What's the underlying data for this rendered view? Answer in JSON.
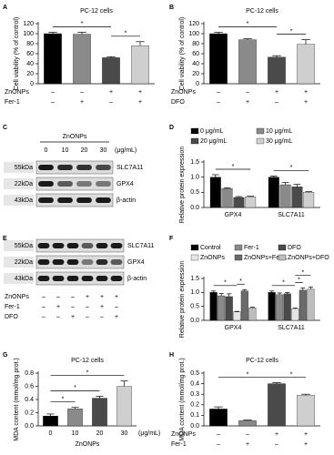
{
  "chart_data": [
    {
      "panel": "A",
      "type": "bar",
      "title": "PC-12 cells",
      "ylabel": "Cell viability (% of control)",
      "values": [
        100,
        99,
        52,
        76
      ],
      "errors": [
        3,
        4,
        2,
        8
      ],
      "colors": [
        "#000000",
        "#8a8a8a",
        "#4a4a4a",
        "#cfcfcf"
      ],
      "ylim": [
        0,
        120
      ],
      "yticks": [
        0,
        20,
        40,
        60,
        80,
        100,
        120
      ],
      "treatments": [
        {
          "label": "ZnONPs",
          "signs": [
            "–",
            "–",
            "+",
            "+"
          ]
        },
        {
          "label": "Fer-1",
          "signs": [
            "–",
            "+",
            "–",
            "+"
          ]
        }
      ],
      "significance": [
        {
          "text": "*",
          "between": [
            0,
            2
          ]
        },
        {
          "text": "*",
          "between": [
            2,
            3
          ]
        }
      ]
    },
    {
      "panel": "B",
      "type": "bar",
      "title": "PC-12 cells",
      "ylabel": "Cell viability (% of control)",
      "values": [
        100,
        88,
        53,
        79
      ],
      "errors": [
        3,
        2,
        3,
        9
      ],
      "colors": [
        "#000000",
        "#8a8a8a",
        "#4a4a4a",
        "#cfcfcf"
      ],
      "ylim": [
        0,
        120
      ],
      "yticks": [
        0,
        20,
        40,
        60,
        80,
        100,
        120
      ],
      "treatments": [
        {
          "label": "ZnONPs",
          "signs": [
            "–",
            "–",
            "+",
            "+"
          ]
        },
        {
          "label": "DFO",
          "signs": [
            "–",
            "+",
            "–",
            "+"
          ]
        }
      ],
      "significance": [
        {
          "text": "*",
          "between": [
            0,
            2
          ]
        },
        {
          "text": "*",
          "between": [
            2,
            3
          ]
        }
      ]
    },
    {
      "panel": "D",
      "type": "grouped-bar",
      "ylabel": "Relative protein expression",
      "categories": [
        "GPX4",
        "SLC7A11"
      ],
      "series": [
        {
          "name": "0 μg/mL",
          "color": "#000000",
          "values": [
            1.0,
            1.0
          ],
          "errors": [
            0.08,
            0.04
          ]
        },
        {
          "name": "10 μg/mL",
          "color": "#8a8a8a",
          "values": [
            0.62,
            0.75
          ],
          "errors": [
            0.03,
            0.07
          ]
        },
        {
          "name": "20 μg/mL",
          "color": "#4a4a4a",
          "values": [
            0.33,
            0.68
          ],
          "errors": [
            0.03,
            0.08
          ]
        },
        {
          "name": "30 μg/mL",
          "color": "#cfcfcf",
          "values": [
            0.35,
            0.5
          ],
          "errors": [
            0.02,
            0.02
          ]
        }
      ],
      "ylim": [
        0,
        1.5
      ],
      "yticks": [
        {
          "value": 0,
          "label": "0.0"
        },
        {
          "value": 0.5,
          "label": "0.5"
        },
        {
          "value": 1,
          "label": "1.0"
        },
        {
          "value": 1.5,
          "label": "1.5"
        }
      ],
      "legend": "top",
      "significance": [
        {
          "text": "*",
          "category": 0,
          "between": [
            0,
            3
          ]
        },
        {
          "text": "*",
          "category": 1,
          "between": [
            0,
            3
          ]
        }
      ]
    },
    {
      "panel": "F",
      "type": "grouped-bar",
      "ylabel": "Relative protein expression",
      "categories": [
        "GPX4",
        "SLC7A11"
      ],
      "series": [
        {
          "name": "Control",
          "color": "#000000",
          "values": [
            1.0,
            1.0
          ],
          "errors": [
            0.05,
            0.05
          ]
        },
        {
          "name": "Fer-1",
          "color": "#8a8a8a",
          "values": [
            0.88,
            0.92
          ],
          "errors": [
            0.08,
            0.06
          ]
        },
        {
          "name": "DFO",
          "color": "#4a4a4a",
          "values": [
            0.85,
            0.95
          ],
          "errors": [
            0.1,
            0.05
          ]
        },
        {
          "name": "ZnONPs",
          "color": "#e6e6e6",
          "values": [
            0.3,
            0.42
          ],
          "errors": [
            0.02,
            0.02
          ]
        },
        {
          "name": "ZnONPs+Fer-1",
          "color": "#6a6a6a",
          "values": [
            1.05,
            1.08
          ],
          "errors": [
            0.05,
            0.08
          ]
        },
        {
          "name": "ZnONPs+DFO",
          "color": "#bdbdbd",
          "values": [
            0.45,
            1.12
          ],
          "errors": [
            0.02,
            0.07
          ]
        }
      ],
      "ylim": [
        0,
        1.5
      ],
      "yticks": [
        {
          "value": 0,
          "label": "0.0"
        },
        {
          "value": 0.5,
          "label": "0.5"
        },
        {
          "value": 1,
          "label": "1.0"
        },
        {
          "value": 1.5,
          "label": "1.5"
        }
      ],
      "legend": "top",
      "significance": [
        {
          "text": "*",
          "category": 0,
          "between": [
            0,
            3
          ]
        },
        {
          "text": "*",
          "category": 0,
          "between": [
            3,
            4
          ]
        },
        {
          "text": "*",
          "category": 1,
          "between": [
            0,
            3
          ]
        },
        {
          "text": "*",
          "category": 1,
          "between": [
            3,
            4
          ]
        },
        {
          "text": "*",
          "category": 1,
          "between": [
            3,
            5
          ]
        }
      ]
    },
    {
      "panel": "G",
      "type": "bar",
      "title": "PC-12 cells",
      "ylabel": "MDA content (mmol/mg prot.)",
      "categories": [
        "0",
        "10",
        "20",
        "30"
      ],
      "xlabel": "ZnONPs",
      "xunit": "(μg/mL)",
      "values": [
        0.15,
        0.26,
        0.42,
        0.6
      ],
      "errors": [
        0.03,
        0.02,
        0.03,
        0.08
      ],
      "colors": [
        "#000000",
        "#8a8a8a",
        "#4a4a4a",
        "#cfcfcf"
      ],
      "ylim": [
        0,
        0.8
      ],
      "yticks": [
        {
          "value": 0,
          "label": "0.0"
        },
        {
          "value": 0.2,
          "label": "0.2"
        },
        {
          "value": 0.4,
          "label": "0.4"
        },
        {
          "value": 0.6,
          "label": "0.6"
        },
        {
          "value": 0.8,
          "label": "0.8"
        }
      ],
      "significance": [
        {
          "text": "*",
          "between": [
            0,
            1
          ]
        },
        {
          "text": "*",
          "between": [
            0,
            2
          ]
        },
        {
          "text": "*",
          "between": [
            0,
            3
          ]
        }
      ]
    },
    {
      "panel": "H",
      "type": "bar",
      "title": "PC-12 cells",
      "ylabel": "MDA content (mmol/mg prot.)",
      "values": [
        0.16,
        0.05,
        0.4,
        0.29
      ],
      "errors": [
        0.02,
        0.005,
        0.01,
        0.01
      ],
      "colors": [
        "#000000",
        "#8a8a8a",
        "#4a4a4a",
        "#cfcfcf"
      ],
      "ylim": [
        0,
        0.5
      ],
      "yticks": [
        {
          "value": 0,
          "label": "0.0"
        },
        {
          "value": 0.1,
          "label": "0.1"
        },
        {
          "value": 0.2,
          "label": "0.2"
        },
        {
          "value": 0.3,
          "label": "0.3"
        },
        {
          "value": 0.4,
          "label": "0.4"
        },
        {
          "value": 0.5,
          "label": "0.5"
        }
      ],
      "treatments": [
        {
          "label": "ZnONPs",
          "signs": [
            "–",
            "–",
            "+",
            "+"
          ]
        },
        {
          "label": "Fer-1",
          "signs": [
            "–",
            "+",
            "–",
            "+"
          ]
        }
      ],
      "significance": [
        {
          "text": "*",
          "between": [
            0,
            2
          ]
        },
        {
          "text": "*",
          "between": [
            2,
            3
          ]
        }
      ]
    }
  ],
  "blots": [
    {
      "panel": "C",
      "treatment": "ZnONPs",
      "lanes": [
        "0",
        "10",
        "20",
        "30"
      ],
      "unit": "(μg/mL)",
      "rows": [
        {
          "size": "55kDa",
          "protein": "SLC7A11"
        },
        {
          "size": "22kDa",
          "protein": "GPX4"
        },
        {
          "size": "43kDa",
          "protein": "β-actin"
        }
      ]
    },
    {
      "panel": "E",
      "rows": [
        {
          "size": "55kDa",
          "protein": "SLC7A11"
        },
        {
          "size": "22kDa",
          "protein": "GPX4"
        },
        {
          "size": "43kDa",
          "protein": "β-actin"
        }
      ],
      "treatments": [
        {
          "label": "ZnONPs",
          "signs": [
            "–",
            "–",
            "–",
            "+",
            "+",
            "+"
          ]
        },
        {
          "label": "Fer-1",
          "signs": [
            "–",
            "+",
            "–",
            "–",
            "+",
            "–"
          ]
        },
        {
          "label": "DFO",
          "signs": [
            "–",
            "–",
            "+",
            "–",
            "–",
            "+"
          ]
        }
      ]
    }
  ]
}
